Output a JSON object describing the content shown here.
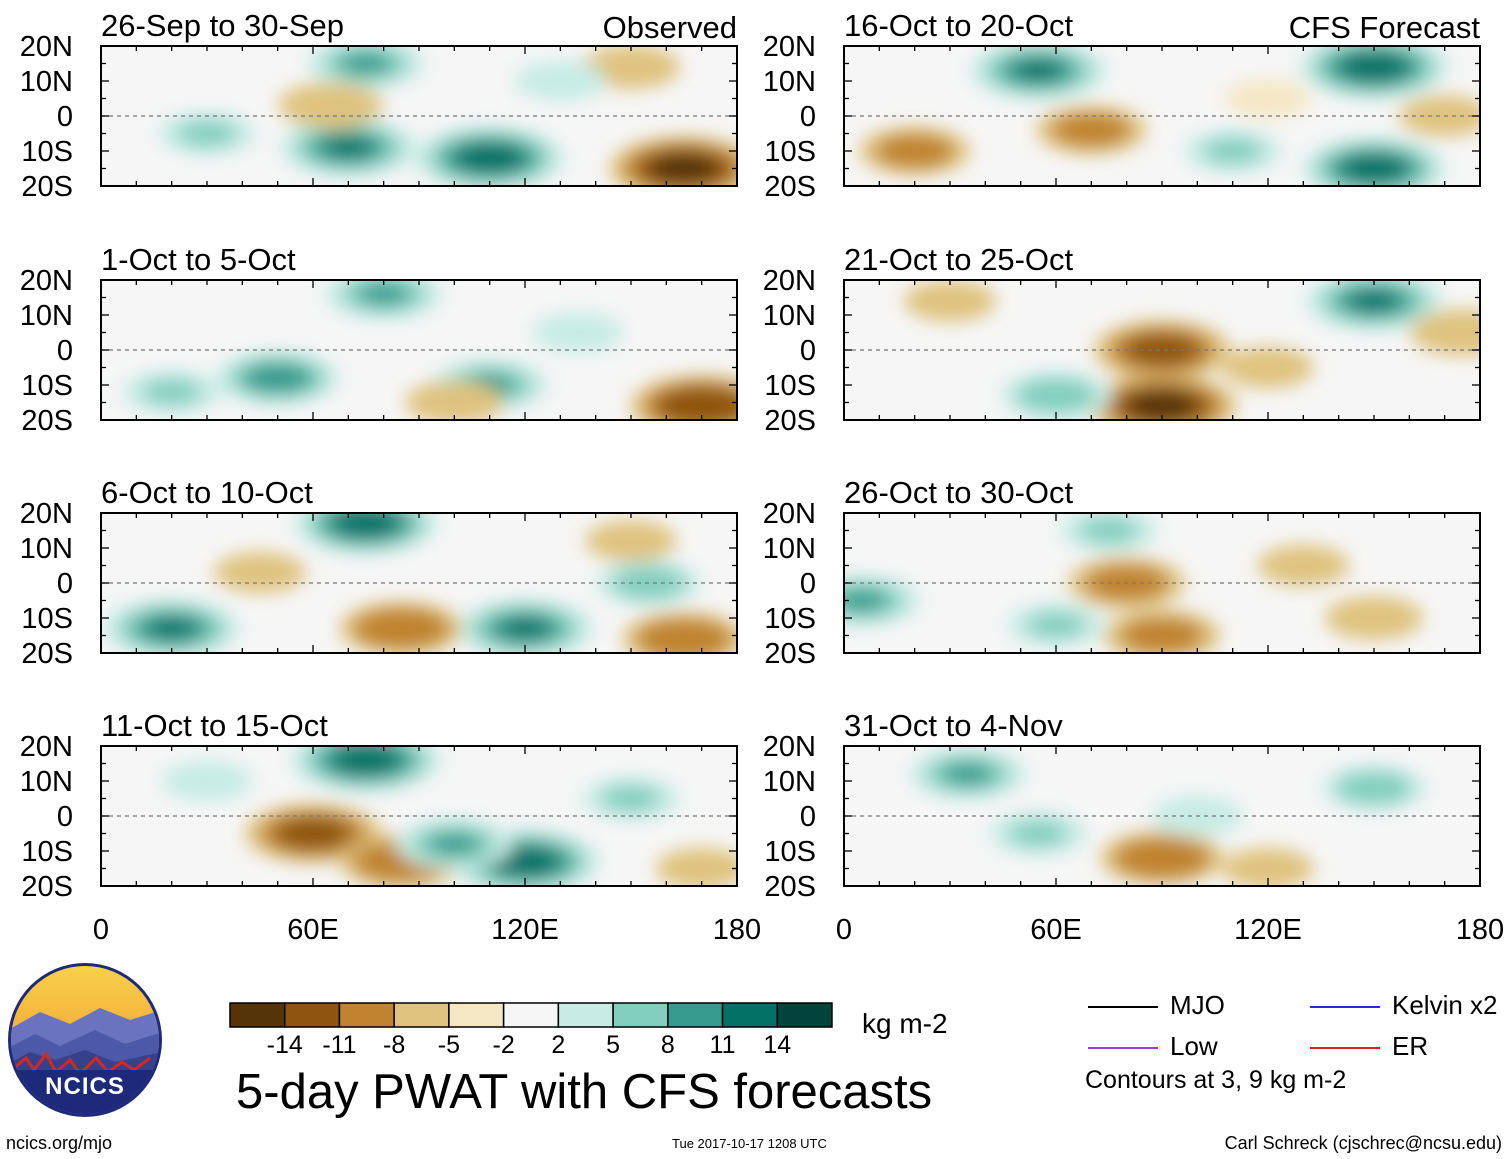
{
  "figure": {
    "main_title": "5-day PWAT with CFS forecasts",
    "units": "kg m-2",
    "contour_note": "Contours at 3, 9 kg m-2",
    "source_url": "ncics.org/mjo",
    "timestamp": "Tue 2017-10-17 1208 UTC",
    "author": "Carl Schreck (cjschrec@ncsu.edu)",
    "logo_text": "NCICS"
  },
  "legend": [
    {
      "label": "MJO",
      "color": "#000000"
    },
    {
      "label": "Kelvin x2",
      "color": "#1f2fe0"
    },
    {
      "label": "Low",
      "color": "#9b3be0"
    },
    {
      "label": "ER",
      "color": "#e01f1f"
    }
  ],
  "colorbar": {
    "colors": [
      "#553407",
      "#8f5410",
      "#c0832f",
      "#dfc27e",
      "#f5e7c4",
      "#f6f6f6",
      "#c8ece5",
      "#82cebf",
      "#369b8e",
      "#047166",
      "#01443b"
    ],
    "tick_labels": [
      "-14",
      "-11",
      "-8",
      "-5",
      "-2",
      "2",
      "5",
      "8",
      "11",
      "14"
    ]
  },
  "chart_data": {
    "type": "heatmap",
    "variable": "PWAT anomaly",
    "units": "kg m-2",
    "x_ticks": [
      "0",
      "60E",
      "120E",
      "180"
    ],
    "y_ticks": [
      "20N",
      "10N",
      "0",
      "10S",
      "20S"
    ],
    "xlim": [
      0,
      180
    ],
    "ylim": [
      -20,
      20
    ],
    "columns": [
      {
        "header": "Observed",
        "panels": [
          {
            "title": "26-Sep to 30-Sep",
            "blobs": [
              {
                "lon": 70,
                "lat": -9,
                "value": 12
              },
              {
                "lon": 110,
                "lat": -12,
                "value": 14
              },
              {
                "lon": 165,
                "lat": -15,
                "value": -14
              },
              {
                "lon": 75,
                "lat": 15,
                "value": 9
              },
              {
                "lon": 65,
                "lat": 3,
                "value": -7
              },
              {
                "lon": 150,
                "lat": 14,
                "value": -6
              },
              {
                "lon": 30,
                "lat": -5,
                "value": 6
              },
              {
                "lon": 130,
                "lat": 10,
                "value": 5
              }
            ]
          },
          {
            "title": "1-Oct to 5-Oct",
            "blobs": [
              {
                "lon": 50,
                "lat": -8,
                "value": 10
              },
              {
                "lon": 110,
                "lat": -10,
                "value": 9
              },
              {
                "lon": 170,
                "lat": -16,
                "value": -13
              },
              {
                "lon": 80,
                "lat": 16,
                "value": 9
              },
              {
                "lon": 100,
                "lat": -15,
                "value": -6
              },
              {
                "lon": 20,
                "lat": -12,
                "value": 6
              },
              {
                "lon": 135,
                "lat": 5,
                "value": 5
              }
            ]
          },
          {
            "title": "6-Oct to 10-Oct",
            "blobs": [
              {
                "lon": 75,
                "lat": 17,
                "value": 13
              },
              {
                "lon": 20,
                "lat": -13,
                "value": 12
              },
              {
                "lon": 120,
                "lat": -13,
                "value": 12
              },
              {
                "lon": 85,
                "lat": -13,
                "value": -10
              },
              {
                "lon": 165,
                "lat": -16,
                "value": -10
              },
              {
                "lon": 155,
                "lat": 0,
                "value": 7
              },
              {
                "lon": 45,
                "lat": 3,
                "value": -5
              },
              {
                "lon": 150,
                "lat": 12,
                "value": -5
              }
            ]
          },
          {
            "title": "11-Oct to 15-Oct",
            "blobs": [
              {
                "lon": 75,
                "lat": 16,
                "value": 14
              },
              {
                "lon": 60,
                "lat": -5,
                "value": -12
              },
              {
                "lon": 85,
                "lat": -13,
                "value": -10
              },
              {
                "lon": 120,
                "lat": -13,
                "value": 14
              },
              {
                "lon": 100,
                "lat": -8,
                "value": 9
              },
              {
                "lon": 170,
                "lat": -15,
                "value": -5
              },
              {
                "lon": 150,
                "lat": 5,
                "value": 6
              },
              {
                "lon": 30,
                "lat": 10,
                "value": 5
              }
            ]
          }
        ]
      },
      {
        "header": "CFS Forecast",
        "panels": [
          {
            "title": "16-Oct to 20-Oct",
            "blobs": [
              {
                "lon": 55,
                "lat": 13,
                "value": 12
              },
              {
                "lon": 150,
                "lat": 14,
                "value": 14
              },
              {
                "lon": 150,
                "lat": -15,
                "value": 13
              },
              {
                "lon": 20,
                "lat": -10,
                "value": -8
              },
              {
                "lon": 70,
                "lat": -4,
                "value": -8
              },
              {
                "lon": 110,
                "lat": -10,
                "value": 6
              },
              {
                "lon": 170,
                "lat": 0,
                "value": -5
              },
              {
                "lon": 120,
                "lat": 5,
                "value": -4
              }
            ]
          },
          {
            "title": "21-Oct to 25-Oct",
            "blobs": [
              {
                "lon": 90,
                "lat": 0,
                "value": -12
              },
              {
                "lon": 90,
                "lat": -16,
                "value": -14
              },
              {
                "lon": 150,
                "lat": 14,
                "value": 12
              },
              {
                "lon": 60,
                "lat": -13,
                "value": 8
              },
              {
                "lon": 175,
                "lat": 5,
                "value": -7
              },
              {
                "lon": 30,
                "lat": 14,
                "value": -5
              },
              {
                "lon": 120,
                "lat": -5,
                "value": -5
              }
            ]
          },
          {
            "title": "26-Oct to 30-Oct",
            "blobs": [
              {
                "lon": 80,
                "lat": 0,
                "value": -9
              },
              {
                "lon": 90,
                "lat": -15,
                "value": -9
              },
              {
                "lon": 5,
                "lat": -5,
                "value": 9
              },
              {
                "lon": 150,
                "lat": -10,
                "value": -6
              },
              {
                "lon": 60,
                "lat": -12,
                "value": 6
              },
              {
                "lon": 75,
                "lat": 15,
                "value": 6
              },
              {
                "lon": 130,
                "lat": 5,
                "value": -5
              }
            ]
          },
          {
            "title": "31-Oct to 4-Nov",
            "blobs": [
              {
                "lon": 35,
                "lat": 12,
                "value": 9
              },
              {
                "lon": 90,
                "lat": -12,
                "value": -10
              },
              {
                "lon": 55,
                "lat": -5,
                "value": 6
              },
              {
                "lon": 150,
                "lat": 8,
                "value": 7
              },
              {
                "lon": 100,
                "lat": 0,
                "value": 5
              },
              {
                "lon": 120,
                "lat": -15,
                "value": -5
              }
            ]
          }
        ]
      }
    ]
  }
}
